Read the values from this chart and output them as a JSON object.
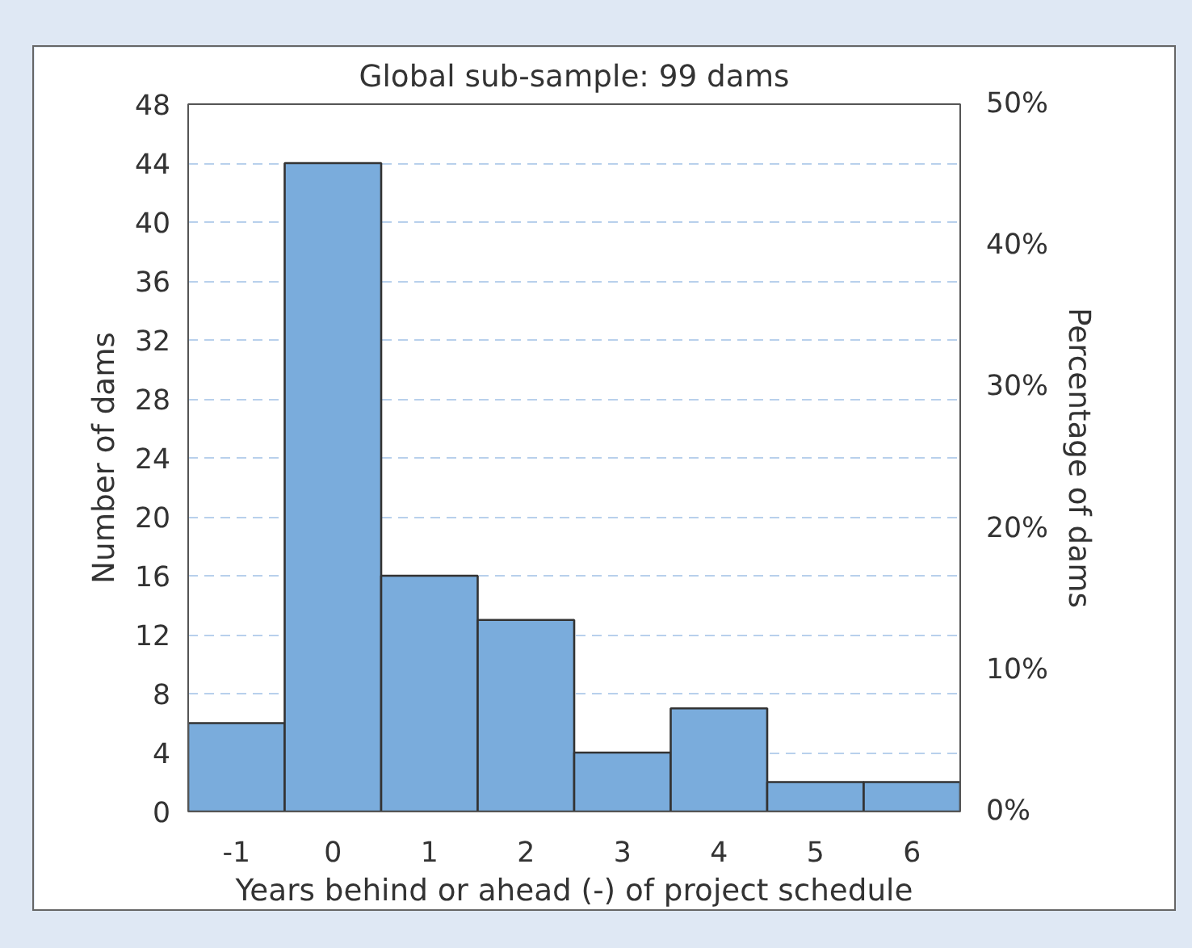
{
  "chart_data": {
    "type": "bar",
    "title": "Global sub-sample: 99 dams",
    "xlabel": "Years behind or ahead (-) of project schedule",
    "ylabel": "Number of dams",
    "y2label": "Percentage of dams",
    "categories": [
      "-1",
      "0",
      "1",
      "2",
      "3",
      "4",
      "5",
      "6"
    ],
    "values": [
      6,
      44,
      16,
      13,
      4,
      7,
      2,
      2
    ],
    "color": "#7aacdc",
    "ylim": [
      0,
      48
    ],
    "yticks": [
      0,
      4,
      8,
      12,
      16,
      20,
      24,
      28,
      32,
      36,
      40,
      44,
      48
    ],
    "y2lim": [
      0,
      50
    ],
    "y2ticks": [
      {
        "value": 0,
        "label": "0%"
      },
      {
        "value": 10,
        "label": "10%"
      },
      {
        "value": 20,
        "label": "20%"
      },
      {
        "value": 30,
        "label": "30%"
      },
      {
        "value": 40,
        "label": "40%"
      },
      {
        "value": 50,
        "label": "50%"
      }
    ],
    "grid": "y"
  }
}
